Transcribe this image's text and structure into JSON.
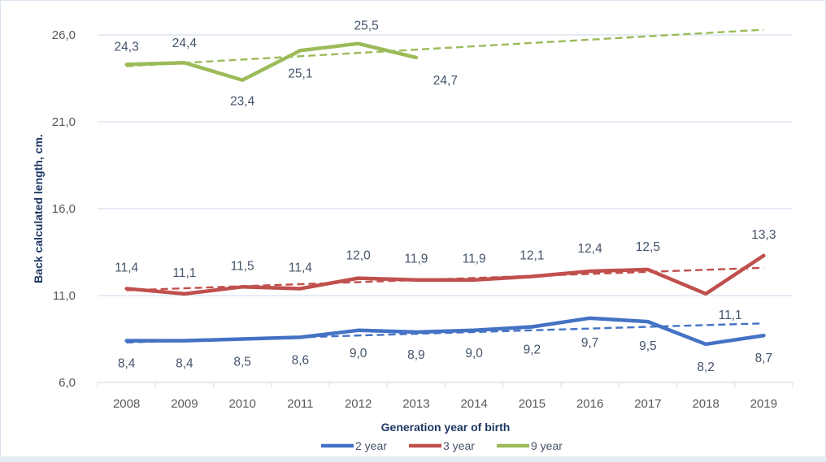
{
  "chart_data": {
    "type": "line",
    "title": "",
    "xlabel": "Generation year of birth",
    "ylabel": "Back calculated length, cm.",
    "ylim": [
      6.0,
      26.0
    ],
    "yticks": [
      "6,0",
      "11,0",
      "16,0",
      "21,0",
      "26,0"
    ],
    "ytick_values": [
      6,
      11,
      16,
      21,
      26
    ],
    "grid": true,
    "legend_position": "bottom",
    "categories": [
      "2008",
      "2009",
      "2010",
      "2011",
      "2012",
      "2013",
      "2014",
      "2015",
      "2016",
      "2017",
      "2018",
      "2019"
    ],
    "series": [
      {
        "name": "2 year",
        "color": "#4472c4",
        "values": [
          8.4,
          8.4,
          8.5,
          8.6,
          9.0,
          8.9,
          9.0,
          9.2,
          9.7,
          9.5,
          8.2,
          8.7
        ],
        "labels": [
          "8,4",
          "8,4",
          "8,5",
          "8,6",
          "9,0",
          "8,9",
          "9,0",
          "9,2",
          "9,7",
          "9,5",
          "8,2",
          "8,7"
        ],
        "trendline": {
          "type": "linear",
          "start": 8.3,
          "end": 9.4
        }
      },
      {
        "name": "3 year",
        "color": "#c0504d",
        "values": [
          11.4,
          11.1,
          11.5,
          11.4,
          12.0,
          11.9,
          11.9,
          12.1,
          12.4,
          12.5,
          11.1,
          13.3
        ],
        "labels": [
          "11,4",
          "11,1",
          "11,5",
          "11,4",
          "12,0",
          "11,9",
          "11,9",
          "12,1",
          "12,4",
          "12,5",
          "11,1",
          "13,3"
        ],
        "trendline": {
          "type": "linear",
          "start": 11.3,
          "end": 12.6
        }
      },
      {
        "name": "9 year",
        "color": "#9bbb59",
        "values": [
          24.3,
          24.4,
          23.4,
          25.1,
          25.5,
          24.7,
          null,
          null,
          null,
          null,
          null,
          null
        ],
        "labels": [
          "24,3",
          "24,4",
          "23,4",
          "25,1",
          "25,5",
          "24,7",
          null,
          null,
          null,
          null,
          null,
          null
        ],
        "trendline": {
          "type": "linear",
          "start": 24.2,
          "end": 26.3
        }
      }
    ]
  }
}
